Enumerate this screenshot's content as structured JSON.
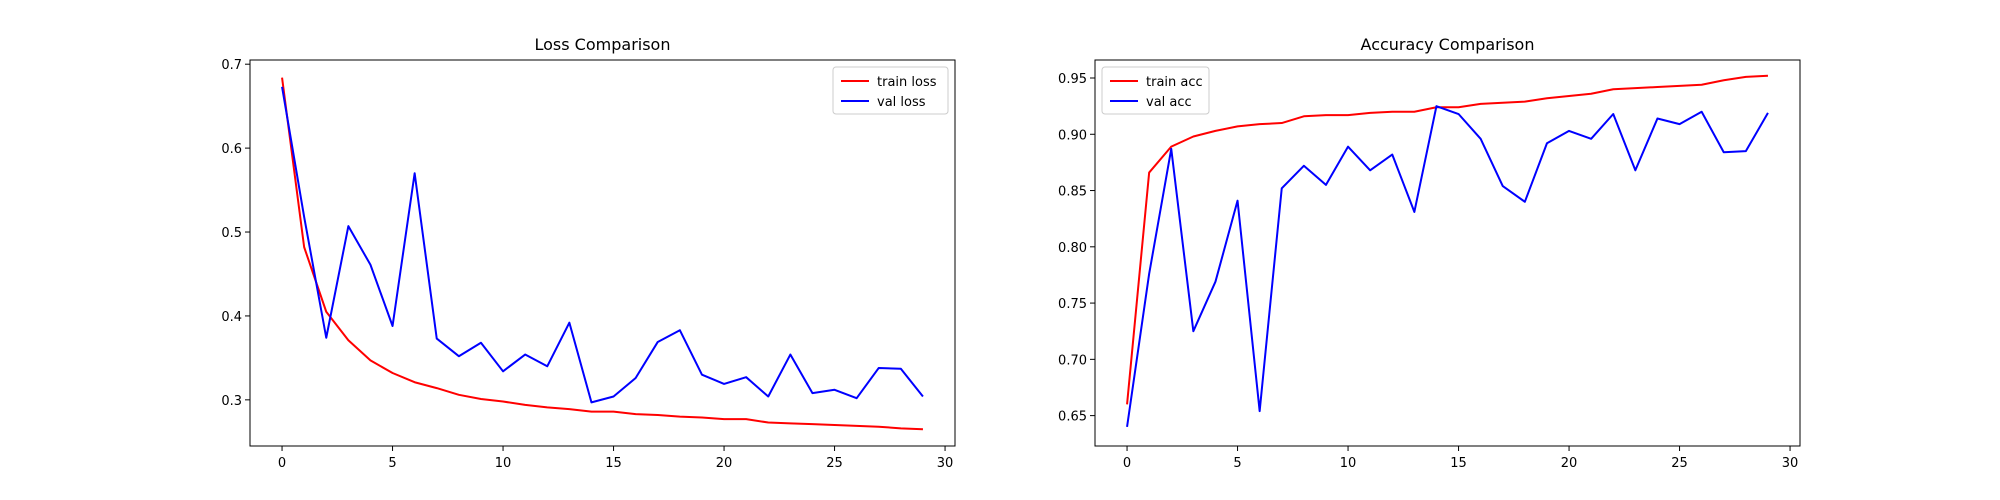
{
  "chart_data": [
    {
      "type": "line",
      "title": "Loss Comparison",
      "xlabel": "",
      "ylabel": "",
      "xlim": [
        -1.45,
        30.45
      ],
      "ylim": [
        0.245,
        0.705
      ],
      "xticks": [
        0,
        5,
        10,
        15,
        20,
        25,
        30
      ],
      "yticks": [
        0.3,
        0.4,
        0.5,
        0.6,
        0.7
      ],
      "ytick_decimals": 1,
      "grid": false,
      "legend_position": "top-right",
      "x": [
        0,
        1,
        2,
        3,
        4,
        5,
        6,
        7,
        8,
        9,
        10,
        11,
        12,
        13,
        14,
        15,
        16,
        17,
        18,
        19,
        20,
        21,
        22,
        23,
        24,
        25,
        26,
        27,
        28,
        29
      ],
      "series": [
        {
          "name": "train loss",
          "color": "#ff0000",
          "values": [
            0.684,
            0.482,
            0.405,
            0.371,
            0.347,
            0.332,
            0.321,
            0.314,
            0.306,
            0.301,
            0.298,
            0.294,
            0.291,
            0.289,
            0.286,
            0.286,
            0.283,
            0.282,
            0.28,
            0.279,
            0.277,
            0.277,
            0.273,
            0.272,
            0.271,
            0.27,
            0.269,
            0.268,
            0.266,
            0.265
          ]
        },
        {
          "name": "val loss",
          "color": "#0000ff",
          "values": [
            0.673,
            0.518,
            0.374,
            0.507,
            0.461,
            0.388,
            0.57,
            0.373,
            0.352,
            0.368,
            0.334,
            0.354,
            0.34,
            0.392,
            0.297,
            0.304,
            0.326,
            0.369,
            0.383,
            0.33,
            0.319,
            0.327,
            0.304,
            0.354,
            0.308,
            0.312,
            0.302,
            0.338,
            0.337,
            0.304
          ]
        }
      ]
    },
    {
      "type": "line",
      "title": "Accuracy Comparison",
      "xlabel": "",
      "ylabel": "",
      "xlim": [
        -1.45,
        30.45
      ],
      "ylim": [
        0.623,
        0.966
      ],
      "xticks": [
        0,
        5,
        10,
        15,
        20,
        25,
        30
      ],
      "yticks": [
        0.65,
        0.7,
        0.75,
        0.8,
        0.85,
        0.9,
        0.95
      ],
      "ytick_decimals": 2,
      "grid": false,
      "legend_position": "top-left",
      "x": [
        0,
        1,
        2,
        3,
        4,
        5,
        6,
        7,
        8,
        9,
        10,
        11,
        12,
        13,
        14,
        15,
        16,
        17,
        18,
        19,
        20,
        21,
        22,
        23,
        24,
        25,
        26,
        27,
        28,
        29
      ],
      "series": [
        {
          "name": "train acc",
          "color": "#ff0000",
          "values": [
            0.66,
            0.866,
            0.889,
            0.898,
            0.903,
            0.907,
            0.909,
            0.91,
            0.916,
            0.917,
            0.917,
            0.919,
            0.92,
            0.92,
            0.924,
            0.924,
            0.927,
            0.928,
            0.929,
            0.932,
            0.934,
            0.936,
            0.94,
            0.941,
            0.942,
            0.943,
            0.944,
            0.948,
            0.951,
            0.952
          ]
        },
        {
          "name": "val acc",
          "color": "#0000ff",
          "values": [
            0.64,
            0.776,
            0.887,
            0.725,
            0.769,
            0.841,
            0.654,
            0.852,
            0.872,
            0.855,
            0.889,
            0.868,
            0.882,
            0.831,
            0.925,
            0.918,
            0.896,
            0.854,
            0.84,
            0.892,
            0.903,
            0.896,
            0.918,
            0.868,
            0.914,
            0.909,
            0.92,
            0.884,
            0.885,
            0.919
          ]
        }
      ]
    }
  ]
}
